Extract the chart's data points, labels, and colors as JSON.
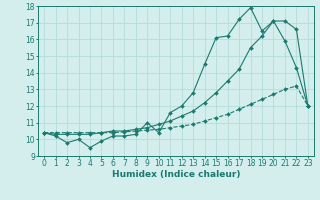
{
  "xlabel": "Humidex (Indice chaleur)",
  "x": [
    0,
    1,
    2,
    3,
    4,
    5,
    6,
    7,
    8,
    9,
    10,
    11,
    12,
    13,
    14,
    15,
    16,
    17,
    18,
    19,
    20,
    21,
    22,
    23
  ],
  "line1": [
    10.4,
    10.2,
    9.8,
    10.0,
    9.5,
    9.9,
    10.2,
    10.2,
    10.3,
    11.0,
    10.4,
    11.6,
    12.0,
    12.8,
    14.5,
    16.1,
    16.2,
    17.2,
    17.9,
    16.5,
    17.1,
    15.9,
    14.3,
    12.0
  ],
  "line2": [
    10.4,
    10.3,
    10.3,
    10.3,
    10.3,
    10.4,
    10.5,
    10.5,
    10.6,
    10.7,
    10.9,
    11.1,
    11.4,
    11.7,
    12.2,
    12.8,
    13.5,
    14.2,
    15.5,
    16.2,
    17.1,
    17.1,
    16.6,
    12.0
  ],
  "line3": [
    10.4,
    10.4,
    10.4,
    10.4,
    10.4,
    10.4,
    10.4,
    10.45,
    10.5,
    10.55,
    10.6,
    10.7,
    10.8,
    10.9,
    11.1,
    11.3,
    11.5,
    11.8,
    12.1,
    12.4,
    12.7,
    13.0,
    13.2,
    12.0
  ],
  "line_color": "#1a7a6e",
  "bg_color": "#d4eeee",
  "grid_color": "#b0d8d8",
  "ylim": [
    9,
    18
  ],
  "xlim": [
    -0.5,
    23.5
  ],
  "yticks": [
    9,
    10,
    11,
    12,
    13,
    14,
    15,
    16,
    17,
    18
  ],
  "xticks": [
    0,
    1,
    2,
    3,
    4,
    5,
    6,
    7,
    8,
    9,
    10,
    11,
    12,
    13,
    14,
    15,
    16,
    17,
    18,
    19,
    20,
    21,
    22,
    23
  ],
  "tick_fontsize": 5.5,
  "label_fontsize": 6.5
}
